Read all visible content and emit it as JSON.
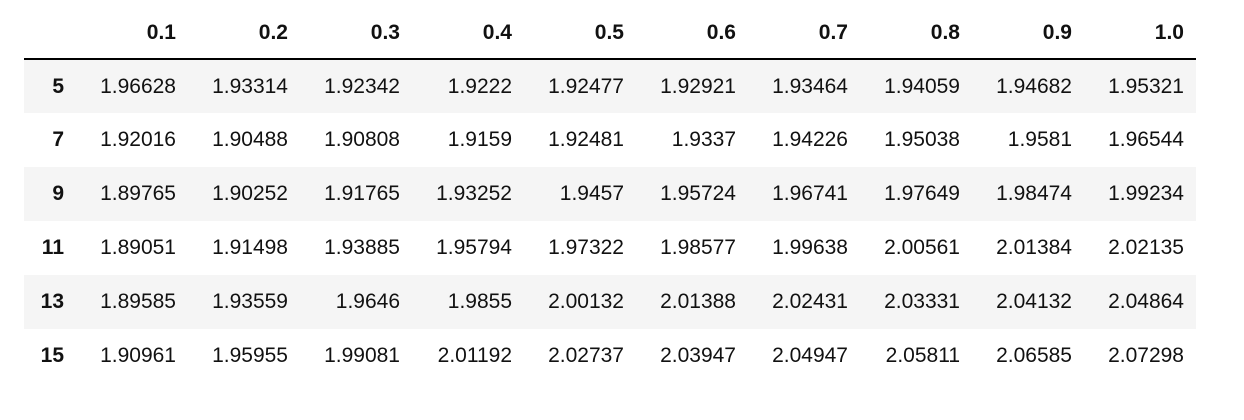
{
  "table": {
    "columns": [
      "0.1",
      "0.2",
      "0.3",
      "0.4",
      "0.5",
      "0.6",
      "0.7",
      "0.8",
      "0.9",
      "1.0"
    ],
    "rows": [
      {
        "index": "5",
        "values": [
          "1.96628",
          "1.93314",
          "1.92342",
          "1.9222",
          "1.92477",
          "1.92921",
          "1.93464",
          "1.94059",
          "1.94682",
          "1.95321"
        ]
      },
      {
        "index": "7",
        "values": [
          "1.92016",
          "1.90488",
          "1.90808",
          "1.9159",
          "1.92481",
          "1.9337",
          "1.94226",
          "1.95038",
          "1.9581",
          "1.96544"
        ]
      },
      {
        "index": "9",
        "values": [
          "1.89765",
          "1.90252",
          "1.91765",
          "1.93252",
          "1.9457",
          "1.95724",
          "1.96741",
          "1.97649",
          "1.98474",
          "1.99234"
        ]
      },
      {
        "index": "11",
        "values": [
          "1.89051",
          "1.91498",
          "1.93885",
          "1.95794",
          "1.97322",
          "1.98577",
          "1.99638",
          "2.00561",
          "2.01384",
          "2.02135"
        ]
      },
      {
        "index": "13",
        "values": [
          "1.89585",
          "1.93559",
          "1.9646",
          "1.9855",
          "2.00132",
          "2.01388",
          "2.02431",
          "2.03331",
          "2.04132",
          "2.04864"
        ]
      },
      {
        "index": "15",
        "values": [
          "1.90961",
          "1.95955",
          "1.99081",
          "2.01192",
          "2.02737",
          "2.03947",
          "2.04947",
          "2.05811",
          "2.06585",
          "2.07298"
        ]
      }
    ]
  }
}
